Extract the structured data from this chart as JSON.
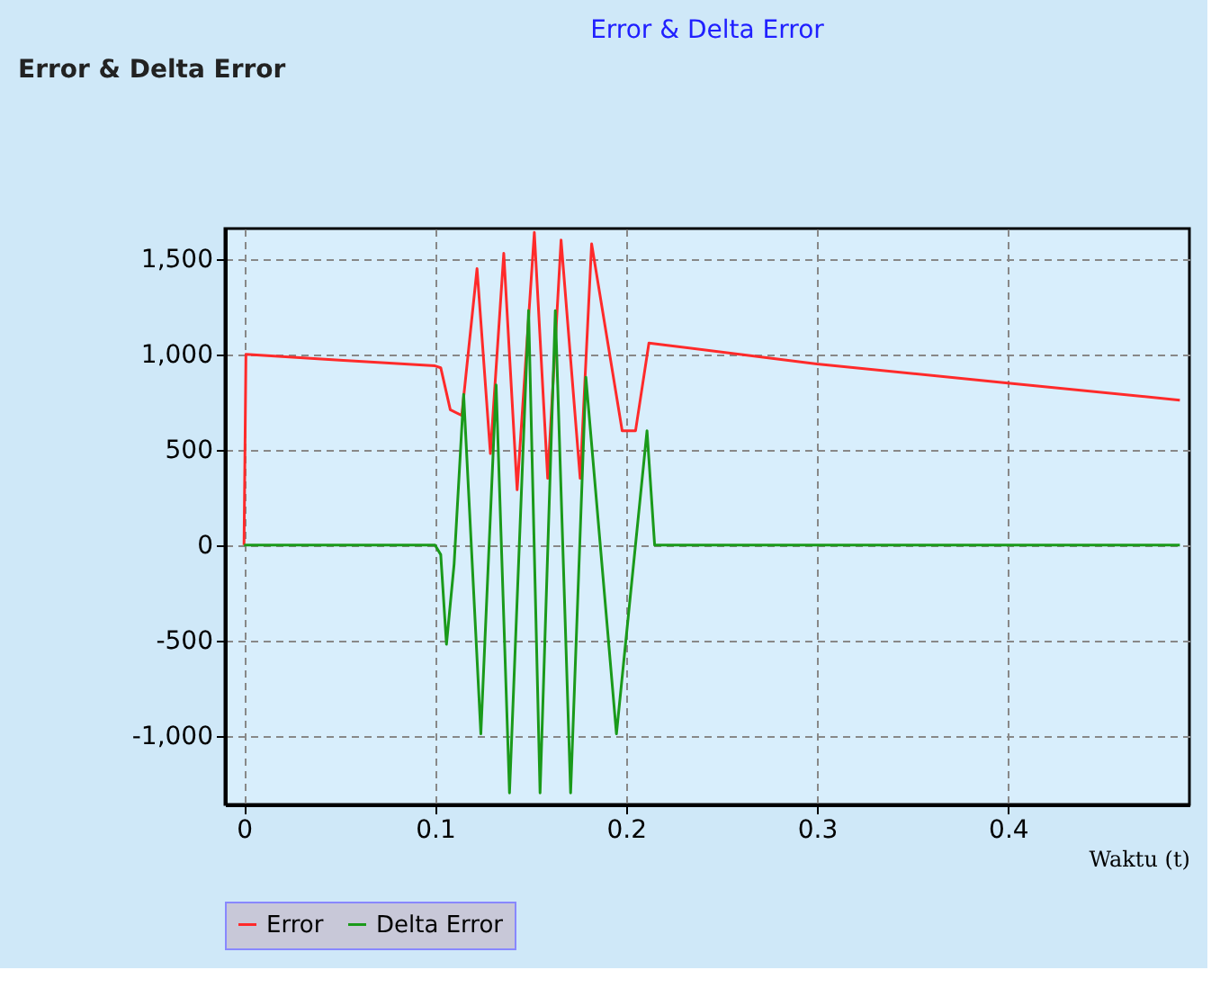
{
  "chart_data": {
    "type": "line",
    "title": "Error & Delta Error",
    "xlabel": "Waktu (t)",
    "annotations": [
      "Error & Delta Error"
    ],
    "series": [
      {
        "name": "Error",
        "color": "#ff2a2a",
        "x": [
          0,
          0.0005,
          0.001,
          0.05,
          0.1,
          0.103,
          0.108,
          0.114,
          0.122,
          0.129,
          0.136,
          0.143,
          0.152,
          0.159,
          0.166,
          0.176,
          0.182,
          0.198,
          0.205,
          0.212,
          0.3,
          0.4,
          0.49
        ],
        "values": [
          0,
          500,
          1000,
          970,
          940,
          930,
          710,
          680,
          1450,
          480,
          1530,
          290,
          1640,
          350,
          1600,
          350,
          1580,
          600,
          600,
          1060,
          950,
          850,
          760
        ]
      },
      {
        "name": "Delta Error",
        "color": "#1a9a1a",
        "x": [
          0,
          0.1,
          0.103,
          0.106,
          0.11,
          0.115,
          0.124,
          0.132,
          0.139,
          0.149,
          0.155,
          0.163,
          0.171,
          0.179,
          0.195,
          0.211,
          0.215,
          0.3,
          0.4,
          0.49
        ],
        "values": [
          0,
          0,
          -50,
          -520,
          -100,
          790,
          -990,
          840,
          -1300,
          1230,
          -1300,
          1230,
          -1300,
          880,
          -990,
          600,
          0,
          0,
          0,
          0
        ]
      }
    ],
    "xlim": [
      -0.01,
      0.495
    ],
    "ylim": [
      -1360,
      1660
    ],
    "xticks": [
      0,
      0.1,
      0.2,
      0.3,
      0.4
    ],
    "yticks": [
      {
        "value": -1000,
        "label": "-1,000"
      },
      {
        "value": -500,
        "label": "-500"
      },
      {
        "value": 0,
        "label": "0"
      },
      {
        "value": 500,
        "label": "500"
      },
      {
        "value": 1000,
        "label": "1,000"
      },
      {
        "value": 1500,
        "label": "1,500"
      }
    ],
    "grid": true,
    "legend": "bottom",
    "line_style": "solid",
    "marker": "none"
  }
}
